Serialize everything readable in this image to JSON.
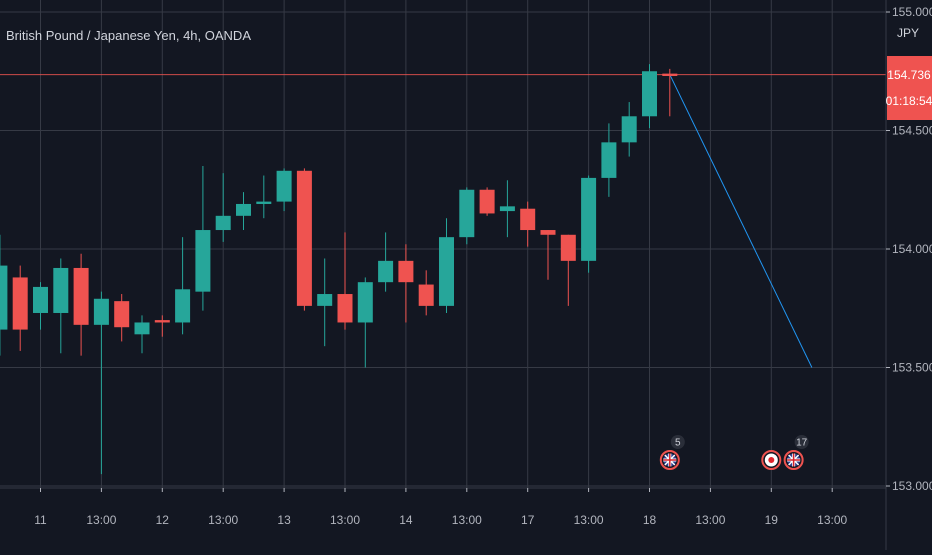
{
  "header": {
    "symbol_label": "British Pound / Japanese Yen, 4h, OANDA"
  },
  "currency_badge": "JPY",
  "price_label": {
    "price": "154.736",
    "countdown": "01:18:54",
    "value": 154.736
  },
  "colors": {
    "background": "#131722",
    "grid": "#363a45",
    "text": "#b2b5be",
    "up": "#26a69a",
    "down": "#ef5350",
    "projection": "#2196f3",
    "price_line": "#ef5350"
  },
  "chart_data": {
    "type": "candlestick",
    "title": "British Pound / Japanese Yen, 4h, OANDA",
    "y_ticks": [
      153.0,
      153.5,
      154.0,
      154.5,
      155.0
    ],
    "y_tick_labels": [
      "153.000",
      "153.500",
      "154.000",
      "154.500",
      "155.000"
    ],
    "ylim": [
      152.95,
      155.05
    ],
    "x_ticks": [
      "11",
      "13:00",
      "12",
      "13:00",
      "13",
      "13:00",
      "14",
      "13:00",
      "17",
      "13:00",
      "18",
      "13:00",
      "19",
      "13:00"
    ],
    "x_tick_positions": [
      1,
      4,
      7,
      10,
      13,
      16,
      19,
      22,
      25,
      28,
      31,
      34,
      37,
      40
    ],
    "grid": true,
    "candles": [
      {
        "x": -1,
        "o": 153.66,
        "h": 154.06,
        "l": 153.55,
        "c": 153.93
      },
      {
        "x": 0,
        "o": 153.88,
        "h": 153.93,
        "l": 153.57,
        "c": 153.66
      },
      {
        "x": 1,
        "o": 153.73,
        "h": 153.86,
        "l": 153.66,
        "c": 153.84
      },
      {
        "x": 2,
        "o": 153.73,
        "h": 153.96,
        "l": 153.56,
        "c": 153.92
      },
      {
        "x": 3,
        "o": 153.92,
        "h": 153.98,
        "l": 153.55,
        "c": 153.68
      },
      {
        "x": 4,
        "o": 153.68,
        "h": 153.82,
        "l": 153.05,
        "c": 153.79
      },
      {
        "x": 5,
        "o": 153.78,
        "h": 153.81,
        "l": 153.61,
        "c": 153.67
      },
      {
        "x": 6,
        "o": 153.64,
        "h": 153.72,
        "l": 153.56,
        "c": 153.69
      },
      {
        "x": 7,
        "o": 153.7,
        "h": 153.72,
        "l": 153.63,
        "c": 153.69
      },
      {
        "x": 8,
        "o": 153.69,
        "h": 154.05,
        "l": 153.64,
        "c": 153.83
      },
      {
        "x": 9,
        "o": 153.82,
        "h": 154.35,
        "l": 153.74,
        "c": 154.08
      },
      {
        "x": 10,
        "o": 154.08,
        "h": 154.32,
        "l": 154.03,
        "c": 154.14
      },
      {
        "x": 11,
        "o": 154.14,
        "h": 154.24,
        "l": 154.08,
        "c": 154.19
      },
      {
        "x": 12,
        "o": 154.19,
        "h": 154.31,
        "l": 154.13,
        "c": 154.2
      },
      {
        "x": 13,
        "o": 154.2,
        "h": 154.34,
        "l": 154.16,
        "c": 154.33
      },
      {
        "x": 14,
        "o": 154.33,
        "h": 154.34,
        "l": 153.74,
        "c": 153.76
      },
      {
        "x": 15,
        "o": 153.76,
        "h": 153.96,
        "l": 153.59,
        "c": 153.81
      },
      {
        "x": 16,
        "o": 153.81,
        "h": 154.07,
        "l": 153.66,
        "c": 153.69
      },
      {
        "x": 17,
        "o": 153.69,
        "h": 153.88,
        "l": 153.5,
        "c": 153.86
      },
      {
        "x": 18,
        "o": 153.86,
        "h": 154.07,
        "l": 153.82,
        "c": 153.95
      },
      {
        "x": 19,
        "o": 153.95,
        "h": 154.02,
        "l": 153.69,
        "c": 153.86
      },
      {
        "x": 20,
        "o": 153.85,
        "h": 153.91,
        "l": 153.72,
        "c": 153.76
      },
      {
        "x": 21,
        "o": 153.76,
        "h": 154.13,
        "l": 153.73,
        "c": 154.05
      },
      {
        "x": 22,
        "o": 154.05,
        "h": 154.26,
        "l": 154.02,
        "c": 154.25
      },
      {
        "x": 23,
        "o": 154.25,
        "h": 154.26,
        "l": 154.14,
        "c": 154.15
      },
      {
        "x": 24,
        "o": 154.16,
        "h": 154.29,
        "l": 154.05,
        "c": 154.18
      },
      {
        "x": 25,
        "o": 154.17,
        "h": 154.2,
        "l": 154.01,
        "c": 154.08
      },
      {
        "x": 26,
        "o": 154.08,
        "h": 154.08,
        "l": 153.87,
        "c": 154.06
      },
      {
        "x": 27,
        "o": 154.06,
        "h": 154.06,
        "l": 153.76,
        "c": 153.95
      },
      {
        "x": 28,
        "o": 153.95,
        "h": 154.31,
        "l": 153.9,
        "c": 154.3
      },
      {
        "x": 29,
        "o": 154.3,
        "h": 154.53,
        "l": 154.22,
        "c": 154.45
      },
      {
        "x": 30,
        "o": 154.45,
        "h": 154.62,
        "l": 154.39,
        "c": 154.56
      },
      {
        "x": 31,
        "o": 154.56,
        "h": 154.78,
        "l": 154.51,
        "c": 154.75
      },
      {
        "x": 32,
        "o": 154.74,
        "h": 154.76,
        "l": 154.56,
        "c": 154.73
      }
    ],
    "projection": {
      "from": {
        "x": 32,
        "y": 154.736
      },
      "to": {
        "x": 39.0,
        "y": 153.5
      }
    },
    "event_markers": [
      {
        "x": 32,
        "kind": "uk-flag",
        "count": "5"
      },
      {
        "x": 37,
        "kind": "jp-flag",
        "count": ""
      },
      {
        "x": 38.1,
        "kind": "uk-flag",
        "count": "17"
      }
    ]
  }
}
